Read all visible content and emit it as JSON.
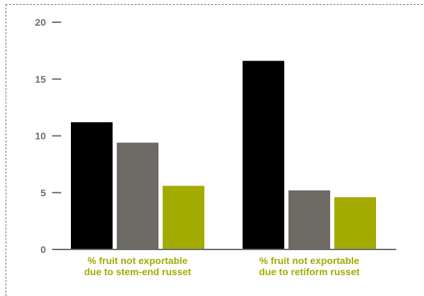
{
  "chart_data": {
    "type": "bar",
    "categories": [
      [
        "% fruit not exportable",
        "due to stem-end russet"
      ],
      [
        "% fruit not exportable",
        "due to retiform russet"
      ]
    ],
    "series": [
      {
        "values": [
          11.2,
          16.6
        ]
      },
      {
        "values": [
          9.4,
          5.2
        ]
      },
      {
        "values": [
          5.6,
          4.6
        ]
      }
    ],
    "series_colors": [
      "#000000",
      "#6e6a66",
      "#a3aa00"
    ],
    "yticks": [
      0,
      5,
      10,
      15,
      20
    ],
    "ylim": [
      0,
      20
    ],
    "label_color": "#a3aa00",
    "axis_color": "#6b6b6b",
    "grid": false,
    "legend": "none"
  }
}
